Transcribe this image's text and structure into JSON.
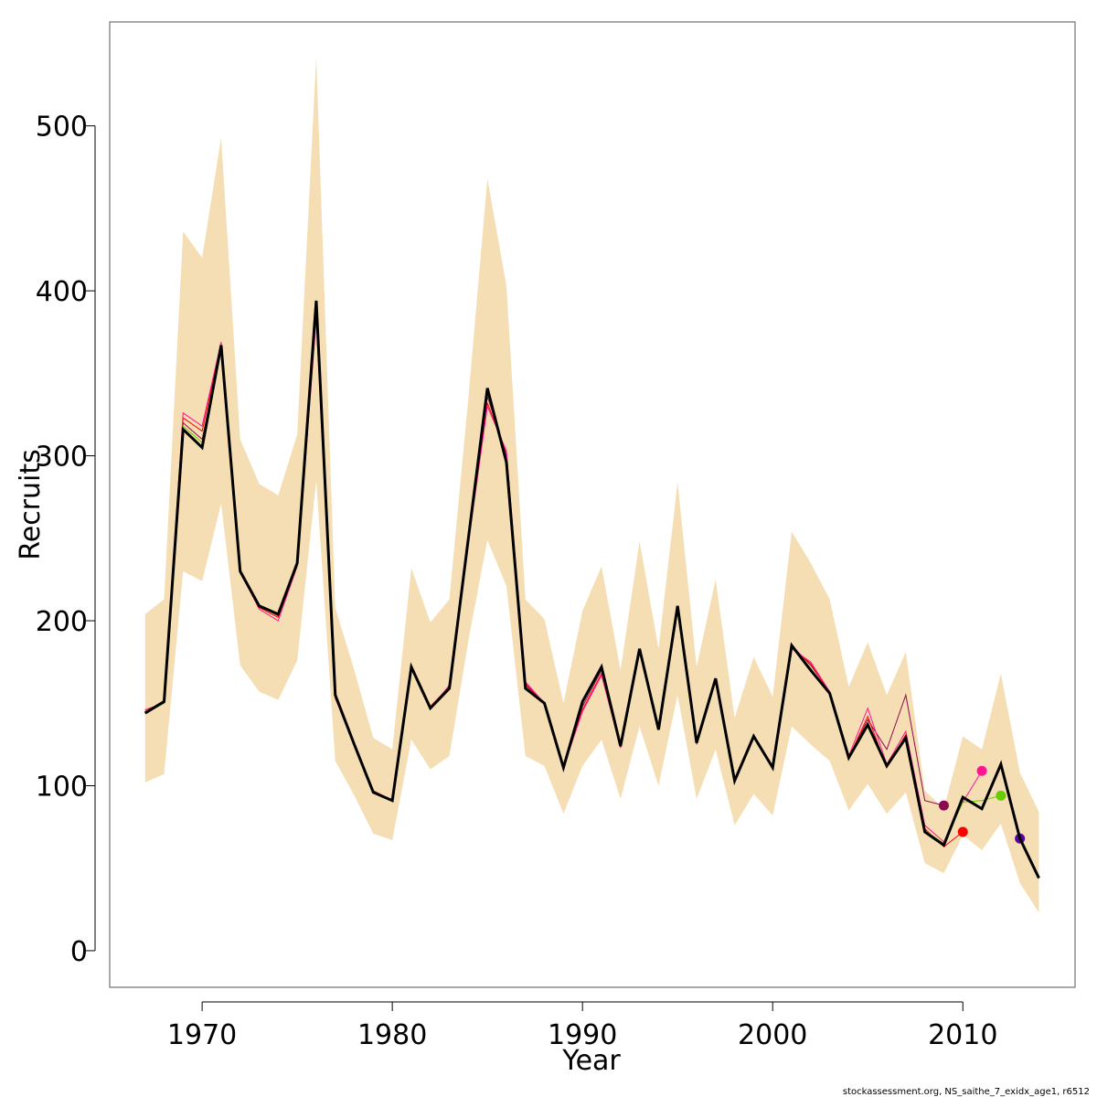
{
  "chart_data": {
    "type": "line",
    "xlabel": "Year",
    "ylabel": "Recruits",
    "caption": "stockassessment.org, NS_saithe_7_exidx_age1, r6512",
    "xlim": [
      1965.14,
      2015.9
    ],
    "ylim": [
      -22.2,
      563
    ],
    "xticks": [
      1970,
      1980,
      1990,
      2000,
      2010
    ],
    "yticks": [
      0,
      100,
      200,
      300,
      400,
      500
    ],
    "x": [
      1967,
      1968,
      1969,
      1970,
      1971,
      1972,
      1973,
      1974,
      1975,
      1976,
      1977,
      1978,
      1979,
      1980,
      1981,
      1982,
      1983,
      1984,
      1985,
      1986,
      1987,
      1988,
      1989,
      1990,
      1991,
      1992,
      1993,
      1994,
      1995,
      1996,
      1997,
      1998,
      1999,
      2000,
      2001,
      2002,
      2003,
      2004,
      2005,
      2006,
      2007,
      2008,
      2009,
      2010,
      2011,
      2012,
      2013,
      2014
    ],
    "band": {
      "color": "#f5deb3",
      "upper": [
        204,
        213,
        436,
        420,
        493,
        310,
        283,
        276,
        313,
        542,
        208,
        170,
        129,
        122,
        232,
        199,
        213,
        335,
        468,
        403,
        213,
        201,
        150,
        206,
        233,
        170,
        248,
        183,
        284,
        172,
        225,
        141,
        178,
        154,
        254,
        235,
        213,
        160,
        187,
        155,
        181,
        97,
        86,
        130,
        122,
        168,
        108,
        84
      ],
      "lower": [
        102,
        107,
        230,
        224,
        271,
        173,
        157,
        152,
        176,
        285,
        115,
        94,
        71,
        67,
        128,
        110,
        118,
        188,
        249,
        221,
        118,
        112,
        83,
        112,
        128,
        92,
        136,
        100,
        155,
        92,
        122,
        76,
        95,
        82,
        136,
        125,
        115,
        85,
        101,
        83,
        96,
        53,
        47,
        70,
        61,
        77,
        41,
        23
      ]
    },
    "series": [
      {
        "color": "#8b0a50",
        "marker": true,
        "values": [
          145,
          150,
          320,
          310,
          366,
          230,
          209,
          203,
          235,
          390,
          155,
          126,
          97,
          91,
          173,
          148,
          160,
          250,
          336,
          300,
          161,
          150,
          111,
          148,
          170,
          124,
          183,
          134,
          209,
          126,
          165,
          103,
          131,
          111,
          185,
          173,
          157,
          117,
          140,
          122,
          155,
          91,
          88,
          null,
          null,
          null,
          null,
          null
        ]
      },
      {
        "color": "#ff0000",
        "marker": true,
        "values": [
          146,
          150,
          323,
          315,
          368,
          229,
          208,
          202,
          234,
          385,
          154,
          125,
          97,
          91,
          172,
          148,
          160,
          248,
          332,
          302,
          162,
          150,
          111,
          146,
          168,
          123,
          182,
          134,
          208,
          125,
          164,
          102,
          130,
          110,
          184,
          174,
          156,
          117,
          142,
          111,
          131,
          74,
          63,
          72,
          null,
          null,
          null,
          null
        ]
      },
      {
        "color": "#ff1493",
        "marker": true,
        "values": [
          146,
          150,
          326,
          318,
          369,
          230,
          207,
          200,
          233,
          383,
          153,
          125,
          96,
          91,
          172,
          147,
          161,
          247,
          330,
          303,
          163,
          150,
          111,
          145,
          167,
          123,
          181,
          134,
          208,
          125,
          164,
          102,
          130,
          110,
          183,
          175,
          157,
          118,
          147,
          113,
          133,
          76,
          66,
          90,
          109,
          null,
          null,
          null
        ]
      },
      {
        "color": "#66cd00",
        "marker": true,
        "values": [
          144,
          150,
          318,
          308,
          367,
          230,
          209,
          204,
          235,
          392,
          155,
          125,
          96,
          91,
          172,
          147,
          159,
          250,
          338,
          297,
          160,
          150,
          111,
          150,
          171,
          124,
          183,
          134,
          209,
          126,
          165,
          103,
          130,
          111,
          185,
          171,
          156,
          117,
          138,
          112,
          130,
          73,
          65,
          90,
          91,
          94,
          null,
          null
        ]
      },
      {
        "color": "#5d00a0",
        "marker": true,
        "values": [
          144,
          151,
          316,
          305,
          367,
          230,
          209,
          204,
          235,
          394,
          155,
          125,
          96,
          91,
          172,
          147,
          159,
          250,
          341,
          296,
          159,
          150,
          111,
          151,
          172,
          124,
          183,
          134,
          209,
          126,
          165,
          103,
          130,
          111,
          185,
          170,
          156,
          117,
          137,
          112,
          129,
          72,
          64,
          93,
          86,
          113,
          68,
          null
        ]
      },
      {
        "color": "#000000",
        "main": true,
        "values": [
          144,
          151,
          316,
          305,
          367,
          230,
          209,
          204,
          235,
          394,
          155,
          125,
          96,
          91,
          172,
          147,
          159,
          250,
          341,
          296,
          159,
          150,
          111,
          151,
          172,
          124,
          183,
          134,
          209,
          126,
          165,
          103,
          130,
          111,
          185,
          170,
          156,
          117,
          137,
          112,
          129,
          72,
          64,
          93,
          86,
          113,
          68,
          44
        ]
      }
    ]
  }
}
